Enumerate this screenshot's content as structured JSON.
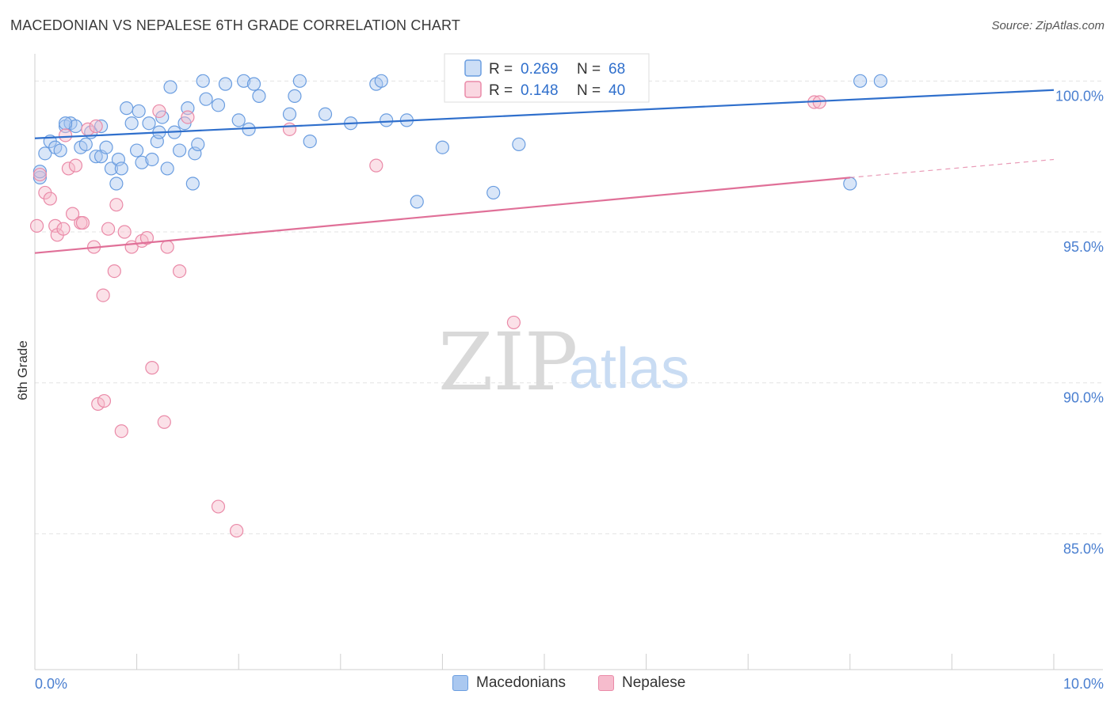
{
  "title": "MACEDONIAN VS NEPALESE 6TH GRADE CORRELATION CHART",
  "source": "Source: ZipAtlas.com",
  "watermark": {
    "zip": "ZIP",
    "atlas": "atlas"
  },
  "colors": {
    "blue": "#6a9de0",
    "blue_fill": "#aac8f0",
    "blue_line": "#2f6fcc",
    "pink": "#ea8aa8",
    "pink_fill": "#f6bccd",
    "pink_line": "#e07098",
    "tick": "#4a7fd0",
    "grid": "#e3e3e3"
  },
  "chart_data": {
    "type": "scatter",
    "title": "MACEDONIAN VS NEPALESE 6TH GRADE CORRELATION CHART",
    "xlabel": "",
    "ylabel": "6th Grade",
    "xlim": [
      0.0,
      10.0
    ],
    "ylim": [
      80.5,
      100.9
    ],
    "x_ticks": [
      0.0,
      10.0
    ],
    "x_tick_labels": [
      "0.0%",
      "10.0%"
    ],
    "y_ticks": [
      85.0,
      90.0,
      95.0,
      100.0
    ],
    "y_tick_labels": [
      "85.0%",
      "90.0%",
      "95.0%",
      "100.0%"
    ],
    "legend": [
      {
        "name": "Macedonians",
        "r_label": "R = ",
        "r_value": "0.269",
        "n_label": "N = ",
        "n_value": "68"
      },
      {
        "name": "Nepalese",
        "r_label": "R = ",
        "r_value": "0.148",
        "n_label": "N = ",
        "n_value": "40"
      }
    ],
    "series": [
      {
        "name": "Macedonians",
        "trend": {
          "x0": 0.0,
          "y0": 98.1,
          "x1": 10.0,
          "y1": 99.7
        },
        "points": [
          [
            0.05,
            96.8
          ],
          [
            0.1,
            97.6
          ],
          [
            0.15,
            98.0
          ],
          [
            0.2,
            97.8
          ],
          [
            0.25,
            97.7
          ],
          [
            0.3,
            98.5
          ],
          [
            0.35,
            98.6
          ],
          [
            0.4,
            98.5
          ],
          [
            0.45,
            97.8
          ],
          [
            0.5,
            97.9
          ],
          [
            0.55,
            98.3
          ],
          [
            0.6,
            97.5
          ],
          [
            0.65,
            97.5
          ],
          [
            0.65,
            98.5
          ],
          [
            0.7,
            97.8
          ],
          [
            0.75,
            97.1
          ],
          [
            0.8,
            96.6
          ],
          [
            0.82,
            97.4
          ],
          [
            0.85,
            97.1
          ],
          [
            0.9,
            99.1
          ],
          [
            0.95,
            98.6
          ],
          [
            1.0,
            97.7
          ],
          [
            1.02,
            99.0
          ],
          [
            1.05,
            97.3
          ],
          [
            1.12,
            98.6
          ],
          [
            1.15,
            97.4
          ],
          [
            1.2,
            98.0
          ],
          [
            1.22,
            98.3
          ],
          [
            1.25,
            98.8
          ],
          [
            1.3,
            97.1
          ],
          [
            1.33,
            99.8
          ],
          [
            1.37,
            98.3
          ],
          [
            1.42,
            97.7
          ],
          [
            1.47,
            98.6
          ],
          [
            1.5,
            99.1
          ],
          [
            1.55,
            96.6
          ],
          [
            1.57,
            97.6
          ],
          [
            1.6,
            97.9
          ],
          [
            1.65,
            100.0
          ],
          [
            1.68,
            99.4
          ],
          [
            1.8,
            99.2
          ],
          [
            1.87,
            99.9
          ],
          [
            2.0,
            98.7
          ],
          [
            2.05,
            100.0
          ],
          [
            2.1,
            98.4
          ],
          [
            2.15,
            99.9
          ],
          [
            2.2,
            99.5
          ],
          [
            2.5,
            98.9
          ],
          [
            2.55,
            99.5
          ],
          [
            2.6,
            100.0
          ],
          [
            2.7,
            98.0
          ],
          [
            2.85,
            98.9
          ],
          [
            3.1,
            98.6
          ],
          [
            3.35,
            99.9
          ],
          [
            3.4,
            100.0
          ],
          [
            3.45,
            98.7
          ],
          [
            3.65,
            98.7
          ],
          [
            3.75,
            96.0
          ],
          [
            4.0,
            97.8
          ],
          [
            4.15,
            100.0
          ],
          [
            4.2,
            100.0
          ],
          [
            4.5,
            96.3
          ],
          [
            4.75,
            97.9
          ],
          [
            8.0,
            96.6
          ],
          [
            8.1,
            100.0
          ],
          [
            8.3,
            100.0
          ],
          [
            0.05,
            97.0
          ],
          [
            0.3,
            98.6
          ]
        ]
      },
      {
        "name": "Nepalese",
        "trend": {
          "x0": 0.0,
          "y0": 94.3,
          "x1": 8.0,
          "y1": 96.8,
          "dash_x1": 10.0,
          "dash_y1": 97.4
        },
        "points": [
          [
            0.02,
            95.2
          ],
          [
            0.05,
            96.9
          ],
          [
            0.1,
            96.3
          ],
          [
            0.15,
            96.1
          ],
          [
            0.2,
            95.2
          ],
          [
            0.22,
            94.9
          ],
          [
            0.28,
            95.1
          ],
          [
            0.3,
            98.2
          ],
          [
            0.33,
            97.1
          ],
          [
            0.37,
            95.6
          ],
          [
            0.4,
            97.2
          ],
          [
            0.45,
            95.3
          ],
          [
            0.47,
            95.3
          ],
          [
            0.52,
            98.4
          ],
          [
            0.58,
            94.5
          ],
          [
            0.6,
            98.5
          ],
          [
            0.62,
            89.3
          ],
          [
            0.67,
            92.9
          ],
          [
            0.68,
            89.4
          ],
          [
            0.72,
            95.1
          ],
          [
            0.78,
            93.7
          ],
          [
            0.8,
            95.9
          ],
          [
            0.85,
            88.4
          ],
          [
            0.88,
            95.0
          ],
          [
            0.95,
            94.5
          ],
          [
            1.05,
            94.7
          ],
          [
            1.1,
            94.8
          ],
          [
            1.15,
            90.5
          ],
          [
            1.22,
            99.0
          ],
          [
            1.27,
            88.7
          ],
          [
            1.3,
            94.5
          ],
          [
            1.5,
            98.8
          ],
          [
            1.42,
            93.7
          ],
          [
            1.8,
            85.9
          ],
          [
            1.98,
            85.1
          ],
          [
            2.5,
            98.4
          ],
          [
            3.35,
            97.2
          ],
          [
            4.7,
            92.0
          ],
          [
            7.65,
            99.3
          ],
          [
            7.7,
            99.3
          ]
        ]
      }
    ]
  },
  "bottom_legend": {
    "macedonians": "Macedonians",
    "nepalese": "Nepalese"
  }
}
